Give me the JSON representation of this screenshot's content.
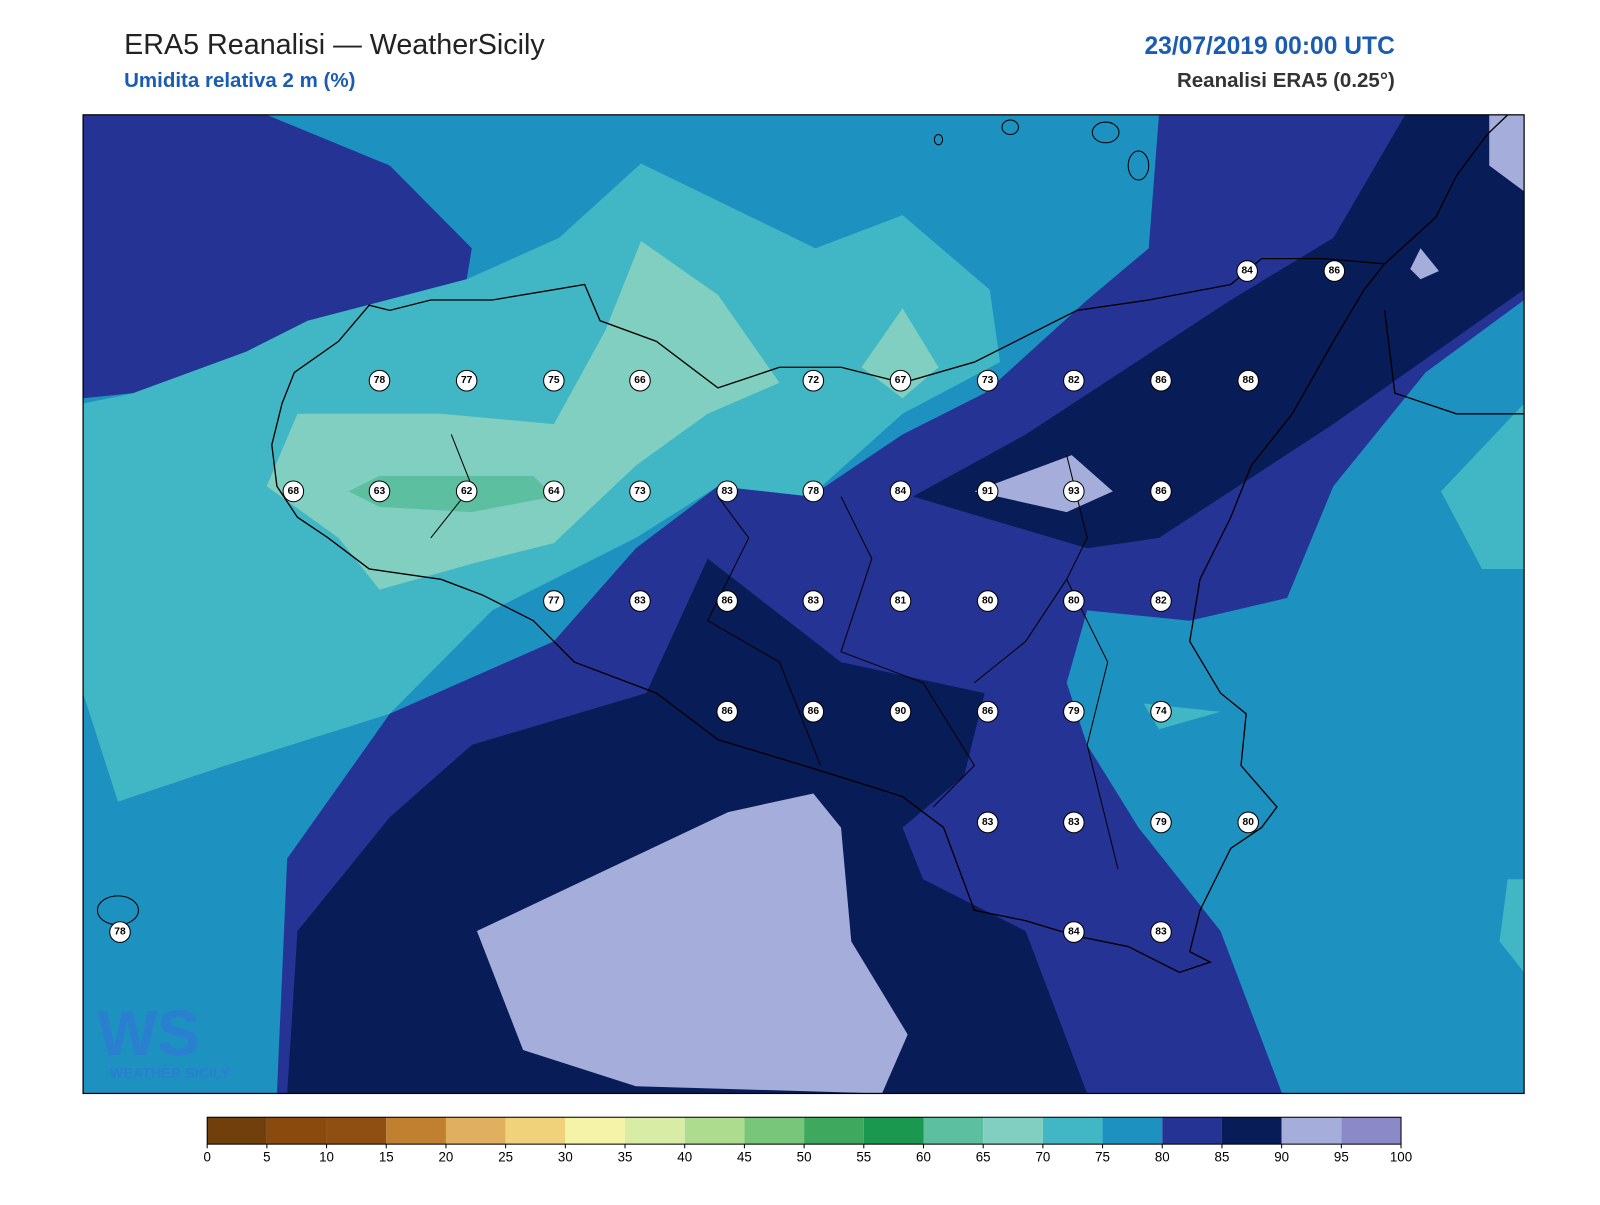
{
  "header": {
    "title": "ERA5 Reanalisi — WeatherSicily",
    "subtitle": "Umidita relativa 2 m (%)",
    "date": "23/07/2019 00:00 UTC",
    "source": "Reanalisi ERA5 (0.25°)"
  },
  "logo": {
    "mark": "WS",
    "text": "WEATHER SICILY"
  },
  "colorbar": {
    "ticks": [
      0,
      5,
      10,
      15,
      20,
      25,
      30,
      35,
      40,
      45,
      50,
      55,
      60,
      65,
      70,
      75,
      80,
      85,
      90,
      95,
      100
    ],
    "colors": [
      "#703f0b",
      "#8a4a0e",
      "#8f4f12",
      "#c08030",
      "#e0b060",
      "#f0d27a",
      "#f5f3a8",
      "#d8eca6",
      "#aedc8e",
      "#78c67a",
      "#3ea85f",
      "#1b9850",
      "#5cbfa0",
      "#80cfc0",
      "#41b6c4",
      "#1d91c0",
      "#253494",
      "#081d58",
      "#a5aedb",
      "#8c89c8"
    ]
  },
  "stations": [
    84,
    86,
    78,
    77,
    75,
    66,
    72,
    67,
    73,
    82,
    86,
    88,
    68,
    63,
    62,
    64,
    73,
    83,
    78,
    84,
    91,
    93,
    86,
    77,
    83,
    86,
    83,
    81,
    80,
    80,
    82,
    86,
    86,
    90,
    86,
    79,
    74,
    83,
    83,
    79,
    80,
    84,
    83,
    78
  ]
}
